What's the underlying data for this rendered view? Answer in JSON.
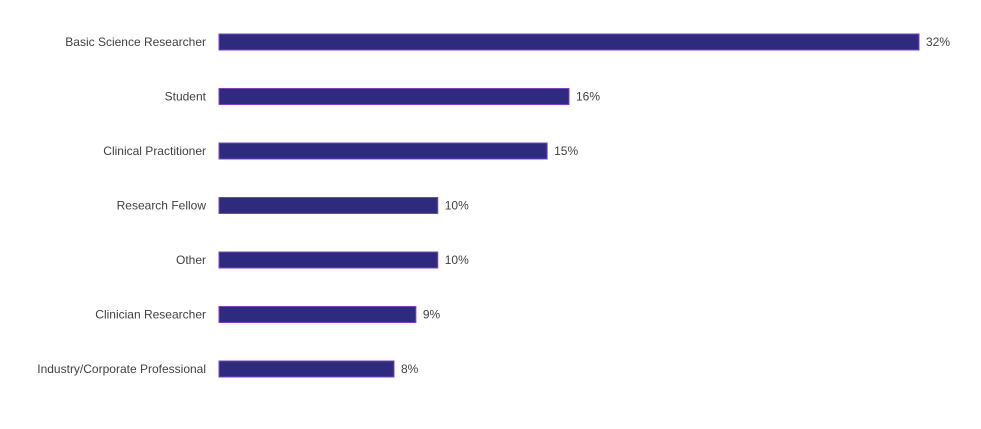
{
  "chart_data": {
    "type": "bar",
    "orientation": "horizontal",
    "categories": [
      "Basic Science Researcher",
      "Student",
      "Clinical Practitioner",
      "Research Fellow",
      "Other",
      "Clinician Researcher",
      "Industry/Corporate Professional"
    ],
    "values": [
      32,
      16,
      15,
      10,
      10,
      9,
      8
    ],
    "value_labels": [
      "32%",
      "16%",
      "15%",
      "10%",
      "10%",
      "9%",
      "8%"
    ],
    "unit": "%",
    "xlim": [
      0,
      32
    ],
    "grid": false,
    "legend": "none",
    "colors": {
      "bar_fill": "#2e2b7e",
      "bar_stroke": "#7b3fd0",
      "text": "#404040"
    }
  }
}
